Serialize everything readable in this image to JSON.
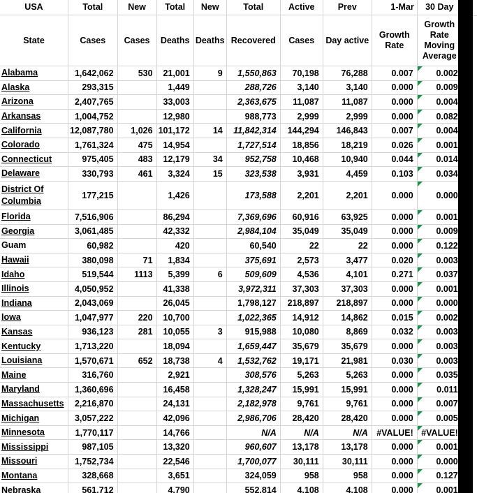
{
  "header": {
    "row1": [
      "USA",
      "Total",
      "New",
      "Total",
      "New",
      "Total",
      "Active",
      "Prev",
      "1-Mar",
      "30 Day"
    ],
    "row2": [
      "State",
      "Cases",
      "Cases",
      "Deaths",
      "Deaths",
      "Recovered",
      "Cases",
      "Day active",
      "Growth Rate",
      "Growth Rate Moving Average"
    ]
  },
  "colors": {
    "gridline": "#d4d4d4",
    "error_indicator": "#1e8f48",
    "strip": "#000000",
    "text": "#000000",
    "background": "#ffffff"
  },
  "rows": [
    {
      "state": "Alabama",
      "cases": "1,642,062",
      "new_cases": "530",
      "deaths": "21,001",
      "new_deaths": "9",
      "recovered": "1,550,863",
      "active": "70,198",
      "prev_day_active": "76,288",
      "growth_rate": "0.007",
      "growth_rate_30day_ma": "0.002",
      "underline": true,
      "recovered_italic": true,
      "na_italic": false,
      "tall": false
    },
    {
      "state": "Alaska",
      "cases": "293,315",
      "new_cases": "",
      "deaths": "1,449",
      "new_deaths": "",
      "recovered": "288,726",
      "active": "3,140",
      "prev_day_active": "3,140",
      "growth_rate": "0.000",
      "growth_rate_30day_ma": "0.009",
      "underline": true,
      "recovered_italic": true,
      "na_italic": false,
      "tall": false
    },
    {
      "state": "Arizona",
      "cases": "2,407,765",
      "new_cases": "",
      "deaths": "33,003",
      "new_deaths": "",
      "recovered": "2,363,675",
      "active": "11,087",
      "prev_day_active": "11,087",
      "growth_rate": "0.000",
      "growth_rate_30day_ma": "0.004",
      "underline": true,
      "recovered_italic": true,
      "na_italic": false,
      "tall": false
    },
    {
      "state": "Arkansas",
      "cases": "1,004,752",
      "new_cases": "",
      "deaths": "12,980",
      "new_deaths": "",
      "recovered": "988,773",
      "active": "2,999",
      "prev_day_active": "2,999",
      "growth_rate": "0.000",
      "growth_rate_30day_ma": "0.082",
      "underline": true,
      "recovered_italic": false,
      "na_italic": false,
      "tall": false
    },
    {
      "state": "California",
      "cases": "12,087,780",
      "new_cases": "1,026",
      "deaths": "101,172",
      "new_deaths": "14",
      "recovered": "11,842,314",
      "active": "144,294",
      "prev_day_active": "146,843",
      "growth_rate": "0.007",
      "growth_rate_30day_ma": "0.004",
      "underline": true,
      "recovered_italic": true,
      "na_italic": false,
      "tall": false
    },
    {
      "state": "Colorado",
      "cases": "1,761,324",
      "new_cases": "475",
      "deaths": "14,954",
      "new_deaths": "",
      "recovered": "1,727,514",
      "active": "18,856",
      "prev_day_active": "18,219",
      "growth_rate": "0.026",
      "growth_rate_30day_ma": "0.001",
      "underline": true,
      "recovered_italic": true,
      "na_italic": false,
      "tall": false
    },
    {
      "state": "Connecticut",
      "cases": "975,405",
      "new_cases": "483",
      "deaths": "12,179",
      "new_deaths": "34",
      "recovered": "952,758",
      "active": "10,468",
      "prev_day_active": "10,940",
      "growth_rate": "0.044",
      "growth_rate_30day_ma": "0.014",
      "underline": true,
      "recovered_italic": true,
      "na_italic": false,
      "tall": false
    },
    {
      "state": "Delaware",
      "cases": "330,793",
      "new_cases": "461",
      "deaths": "3,324",
      "new_deaths": "15",
      "recovered": "323,538",
      "active": "3,931",
      "prev_day_active": "4,459",
      "growth_rate": "0.103",
      "growth_rate_30day_ma": "0.034",
      "underline": true,
      "recovered_italic": true,
      "na_italic": false,
      "tall": false
    },
    {
      "state": "District Of Columbia",
      "cases": "177,215",
      "new_cases": "",
      "deaths": "1,426",
      "new_deaths": "",
      "recovered": "173,588",
      "active": "2,201",
      "prev_day_active": "2,201",
      "growth_rate": "0.000",
      "growth_rate_30day_ma": "0.000",
      "underline": true,
      "recovered_italic": true,
      "na_italic": false,
      "tall": true
    },
    {
      "state": "Florida",
      "cases": "7,516,906",
      "new_cases": "",
      "deaths": "86,294",
      "new_deaths": "",
      "recovered": "7,369,696",
      "active": "60,916",
      "prev_day_active": "63,925",
      "growth_rate": "0.000",
      "growth_rate_30day_ma": "0.001",
      "underline": true,
      "recovered_italic": true,
      "na_italic": false,
      "tall": false
    },
    {
      "state": "Georgia",
      "cases": "3,061,485",
      "new_cases": "",
      "deaths": "42,332",
      "new_deaths": "",
      "recovered": "2,984,104",
      "active": "35,049",
      "prev_day_active": "35,049",
      "growth_rate": "0.000",
      "growth_rate_30day_ma": "0.009",
      "underline": true,
      "recovered_italic": true,
      "na_italic": false,
      "tall": false
    },
    {
      "state": "Guam",
      "cases": "60,982",
      "new_cases": "",
      "deaths": "420",
      "new_deaths": "",
      "recovered": "60,540",
      "active": "22",
      "prev_day_active": "22",
      "growth_rate": "0.000",
      "growth_rate_30day_ma": "0.122",
      "underline": false,
      "recovered_italic": false,
      "na_italic": false,
      "tall": false
    },
    {
      "state": "Hawaii",
      "cases": "380,098",
      "new_cases": "71",
      "deaths": "1,834",
      "new_deaths": "",
      "recovered": "375,691",
      "active": "2,573",
      "prev_day_active": "3,477",
      "growth_rate": "0.020",
      "growth_rate_30day_ma": "0.003",
      "underline": true,
      "recovered_italic": true,
      "na_italic": false,
      "tall": false
    },
    {
      "state": "Idaho",
      "cases": "519,544",
      "new_cases": "1113",
      "deaths": "5,399",
      "new_deaths": "6",
      "recovered": "509,609",
      "active": "4,536",
      "prev_day_active": "4,101",
      "growth_rate": "0.271",
      "growth_rate_30day_ma": "0.037",
      "underline": true,
      "recovered_italic": true,
      "na_italic": false,
      "tall": false
    },
    {
      "state": "Illinois",
      "cases": "4,050,952",
      "new_cases": "",
      "deaths": "41,338",
      "new_deaths": "",
      "recovered": "3,972,311",
      "active": "37,303",
      "prev_day_active": "37,303",
      "growth_rate": "0.000",
      "growth_rate_30day_ma": "0.001",
      "underline": true,
      "recovered_italic": true,
      "na_italic": false,
      "tall": false
    },
    {
      "state": "Indiana",
      "cases": "2,043,069",
      "new_cases": "",
      "deaths": "26,045",
      "new_deaths": "",
      "recovered": "1,798,127",
      "active": "218,897",
      "prev_day_active": "218,897",
      "growth_rate": "0.000",
      "growth_rate_30day_ma": "0.000",
      "underline": true,
      "recovered_italic": false,
      "na_italic": false,
      "tall": false
    },
    {
      "state": "Iowa",
      "cases": "1,047,977",
      "new_cases": "220",
      "deaths": "10,700",
      "new_deaths": "",
      "recovered": "1,022,365",
      "active": "14,912",
      "prev_day_active": "14,862",
      "growth_rate": "0.015",
      "growth_rate_30day_ma": "0.002",
      "underline": true,
      "recovered_italic": true,
      "na_italic": false,
      "tall": false
    },
    {
      "state": "Kansas",
      "cases": "936,123",
      "new_cases": "281",
      "deaths": "10,055",
      "new_deaths": "3",
      "recovered": "915,988",
      "active": "10,080",
      "prev_day_active": "8,869",
      "growth_rate": "0.032",
      "growth_rate_30day_ma": "0.003",
      "underline": true,
      "recovered_italic": false,
      "na_italic": false,
      "tall": false
    },
    {
      "state": "Kentucky",
      "cases": "1,713,220",
      "new_cases": "",
      "deaths": "18,094",
      "new_deaths": "",
      "recovered": "1,659,447",
      "active": "35,679",
      "prev_day_active": "35,679",
      "growth_rate": "0.000",
      "growth_rate_30day_ma": "0.003",
      "underline": true,
      "recovered_italic": true,
      "na_italic": false,
      "tall": false
    },
    {
      "state": "Louisiana",
      "cases": "1,570,671",
      "new_cases": "652",
      "deaths": "18,738",
      "new_deaths": "4",
      "recovered": "1,532,762",
      "active": "19,171",
      "prev_day_active": "21,981",
      "growth_rate": "0.030",
      "growth_rate_30day_ma": "0.003",
      "underline": true,
      "recovered_italic": true,
      "na_italic": false,
      "tall": false
    },
    {
      "state": "Maine",
      "cases": "316,760",
      "new_cases": "",
      "deaths": "2,921",
      "new_deaths": "",
      "recovered": "308,576",
      "active": "5,263",
      "prev_day_active": "5,263",
      "growth_rate": "0.000",
      "growth_rate_30day_ma": "0.035",
      "underline": true,
      "recovered_italic": true,
      "na_italic": false,
      "tall": false
    },
    {
      "state": "Maryland",
      "cases": "1,360,696",
      "new_cases": "",
      "deaths": "16,458",
      "new_deaths": "",
      "recovered": "1,328,247",
      "active": "15,991",
      "prev_day_active": "15,991",
      "growth_rate": "0.000",
      "growth_rate_30day_ma": "0.011",
      "underline": true,
      "recovered_italic": true,
      "na_italic": false,
      "tall": false
    },
    {
      "state": "Massachusetts",
      "cases": "2,216,870",
      "new_cases": "",
      "deaths": "24,131",
      "new_deaths": "",
      "recovered": "2,182,978",
      "active": "9,761",
      "prev_day_active": "9,761",
      "growth_rate": "0.000",
      "growth_rate_30day_ma": "0.007",
      "underline": true,
      "recovered_italic": true,
      "na_italic": false,
      "tall": false
    },
    {
      "state": "Michigan",
      "cases": "3,057,222",
      "new_cases": "",
      "deaths": "42,096",
      "new_deaths": "",
      "recovered": "2,986,706",
      "active": "28,420",
      "prev_day_active": "28,420",
      "growth_rate": "0.000",
      "growth_rate_30day_ma": "0.005",
      "underline": true,
      "recovered_italic": true,
      "na_italic": false,
      "tall": false
    },
    {
      "state": "Minnesota",
      "cases": "1,770,117",
      "new_cases": "",
      "deaths": "14,766",
      "new_deaths": "",
      "recovered": "N/A",
      "active": "N/A",
      "prev_day_active": "N/A",
      "growth_rate": "#VALUE!",
      "growth_rate_30day_ma": "#VALUE!",
      "underline": true,
      "recovered_italic": true,
      "na_italic": true,
      "tall": false
    },
    {
      "state": "Mississippi",
      "cases": "987,105",
      "new_cases": "",
      "deaths": "13,320",
      "new_deaths": "",
      "recovered": "960,607",
      "active": "13,178",
      "prev_day_active": "13,178",
      "growth_rate": "0.000",
      "growth_rate_30day_ma": "0.001",
      "underline": true,
      "recovered_italic": true,
      "na_italic": false,
      "tall": false
    },
    {
      "state": "Missouri",
      "cases": "1,752,734",
      "new_cases": "",
      "deaths": "22,546",
      "new_deaths": "",
      "recovered": "1,700,077",
      "active": "30,111",
      "prev_day_active": "30,111",
      "growth_rate": "0.000",
      "growth_rate_30day_ma": "0.000",
      "underline": true,
      "recovered_italic": true,
      "na_italic": false,
      "tall": false
    },
    {
      "state": "Montana",
      "cases": "328,668",
      "new_cases": "",
      "deaths": "3,651",
      "new_deaths": "",
      "recovered": "324,059",
      "active": "958",
      "prev_day_active": "958",
      "growth_rate": "0.000",
      "growth_rate_30day_ma": "0.127",
      "underline": true,
      "recovered_italic": false,
      "na_italic": false,
      "tall": false
    },
    {
      "state": "Nebraska",
      "cases": "561,712",
      "new_cases": "",
      "deaths": "4,790",
      "new_deaths": "",
      "recovered": "552,814",
      "active": "4,108",
      "prev_day_active": "4,108",
      "growth_rate": "0.000",
      "growth_rate_30day_ma": "0.001",
      "underline": true,
      "recovered_italic": false,
      "na_italic": false,
      "tall": false
    }
  ]
}
